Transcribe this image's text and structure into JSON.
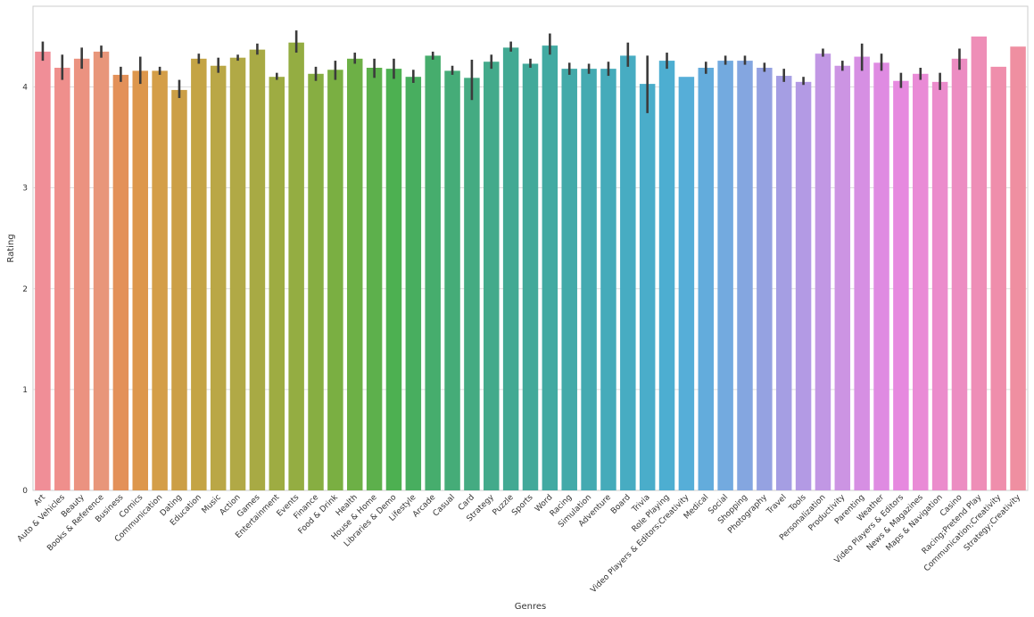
{
  "chart_data": {
    "type": "bar",
    "xlabel": "Genres",
    "ylabel": "Rating",
    "ylim": [
      0,
      4.8
    ],
    "yticks": [
      "0",
      "1",
      "2",
      "3",
      "4"
    ],
    "grid": "horizontal",
    "error_bars": true,
    "categories": [
      "Art",
      "Auto & Vehicles",
      "Beauty",
      "Books & Reference",
      "Business",
      "Comics",
      "Communication",
      "Dating",
      "Education",
      "Music",
      "Action",
      "Games",
      "Entertainment",
      "Events",
      "Finance",
      "Food & Drink",
      "Health",
      "House & Home",
      "Libraries & Demo",
      "Lifestyle",
      "Arcade",
      "Casual",
      "Card",
      "Strategy",
      "Puzzle",
      "Sports",
      "Word",
      "Racing",
      "Simulation",
      "Adventure",
      "Board",
      "Trivia",
      "Role Playing",
      "Video Players & Editors;Creativity",
      "Medical",
      "Social",
      "Shopping",
      "Photography",
      "Travel",
      "Tools",
      "Personalization",
      "Productivity",
      "Parenting",
      "Weather",
      "Video Players & Editors",
      "News & Magazines",
      "Maps & Navigation",
      "Casino",
      "Racing;Pretend Play",
      "Communication;Creativity",
      "Strategy;Creativity"
    ],
    "values": [
      4.35,
      4.19,
      4.28,
      4.35,
      4.12,
      4.16,
      4.16,
      3.97,
      4.28,
      4.21,
      4.29,
      4.37,
      4.1,
      4.44,
      4.13,
      4.17,
      4.28,
      4.19,
      4.18,
      4.1,
      4.31,
      4.16,
      4.09,
      4.25,
      4.39,
      4.23,
      4.41,
      4.18,
      4.18,
      4.18,
      4.31,
      4.03,
      4.26,
      4.1,
      4.19,
      4.26,
      4.26,
      4.19,
      4.11,
      4.05,
      4.33,
      4.21,
      4.3,
      4.24,
      4.06,
      4.13,
      4.05,
      4.28,
      4.5,
      4.2,
      4.4
    ],
    "err_low": [
      4.26,
      4.07,
      4.18,
      4.29,
      4.05,
      4.03,
      4.12,
      3.89,
      4.23,
      4.14,
      4.26,
      4.32,
      4.07,
      4.34,
      4.06,
      4.07,
      4.23,
      4.09,
      4.08,
      4.04,
      4.27,
      4.12,
      3.87,
      4.18,
      4.35,
      4.19,
      4.32,
      4.12,
      4.13,
      4.11,
      4.2,
      3.74,
      4.18,
      4.1,
      4.13,
      4.22,
      4.22,
      4.15,
      4.05,
      4.02,
      4.3,
      4.16,
      4.16,
      4.16,
      3.99,
      4.07,
      3.97,
      4.17,
      4.5,
      4.2,
      4.4
    ],
    "err_high": [
      4.45,
      4.32,
      4.39,
      4.41,
      4.2,
      4.3,
      4.2,
      4.07,
      4.33,
      4.29,
      4.32,
      4.43,
      4.14,
      4.56,
      4.2,
      4.26,
      4.34,
      4.28,
      4.28,
      4.17,
      4.35,
      4.21,
      4.27,
      4.32,
      4.45,
      4.28,
      4.53,
      4.24,
      4.23,
      4.25,
      4.44,
      4.31,
      4.34,
      4.1,
      4.25,
      4.31,
      4.31,
      4.24,
      4.18,
      4.1,
      4.38,
      4.26,
      4.43,
      4.33,
      4.14,
      4.19,
      4.14,
      4.38,
      4.5,
      4.2,
      4.4
    ],
    "colors": [
      "#f08e97",
      "#ef8f8c",
      "#eb9280",
      "#e8967a",
      "#e39159",
      "#dd974c",
      "#d49e48",
      "#cc9f46",
      "#c4a445",
      "#baa746",
      "#b1a946",
      "#a8aa44",
      "#9eac42",
      "#94ad42",
      "#87ae42",
      "#7aaf42",
      "#6db046",
      "#5db04c",
      "#4db051",
      "#48ae5f",
      "#46ad6d",
      "#45ac78",
      "#44ab82",
      "#43aa8b",
      "#42a993",
      "#42a99a",
      "#42aaa2",
      "#43aaa9",
      "#44aab1",
      "#45abba",
      "#47acc2",
      "#4aadca",
      "#4daed1",
      "#56aed8",
      "#63acdc",
      "#73aadf",
      "#84a6e0",
      "#95a2e1",
      "#a59ee3",
      "#b39ae4",
      "#c197e4",
      "#cc94e3",
      "#d68fe3",
      "#df8be2",
      "#e689df",
      "#e98bd6",
      "#eb8ccc",
      "#ec8dc2",
      "#ee8eb7",
      "#ef8eac",
      "#ef8fa1"
    ]
  }
}
